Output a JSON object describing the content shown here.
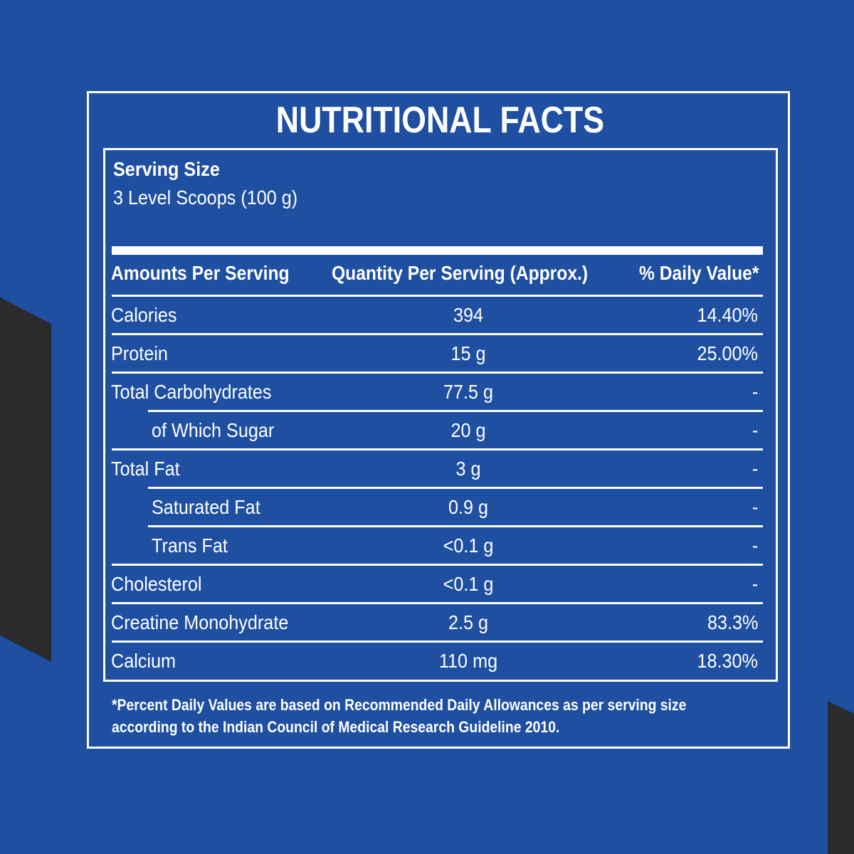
{
  "title": "NUTRITIONAL FACTS",
  "serving": {
    "label": "Serving Size",
    "value": "3 Level Scoops (100 g)"
  },
  "table": {
    "headers": {
      "name": "Amounts Per Serving",
      "quantity": "Quantity Per Serving (Approx.)",
      "daily_value": "% Daily Value*"
    },
    "rows": [
      {
        "name": "Calories",
        "quantity": "394",
        "daily_value": "14.40%",
        "indent": false
      },
      {
        "name": "Protein",
        "quantity": "15 g",
        "daily_value": "25.00%",
        "indent": false
      },
      {
        "name": "Total Carbohydrates",
        "quantity": "77.5 g",
        "daily_value": "-",
        "indent": false
      },
      {
        "name": "of Which Sugar",
        "quantity": "20 g",
        "daily_value": "-",
        "indent": true
      },
      {
        "name": "Total Fat",
        "quantity": "3 g",
        "daily_value": "-",
        "indent": false
      },
      {
        "name": "Saturated Fat",
        "quantity": "0.9 g",
        "daily_value": "-",
        "indent": true
      },
      {
        "name": "Trans Fat",
        "quantity": "<0.1 g",
        "daily_value": "-",
        "indent": true
      },
      {
        "name": "Cholesterol",
        "quantity": "<0.1 g",
        "daily_value": "-",
        "indent": false
      },
      {
        "name": "Creatine Monohydrate",
        "quantity": "2.5 g",
        "daily_value": "83.3%",
        "indent": false
      },
      {
        "name": "Calcium",
        "quantity": "110 mg",
        "daily_value": "18.30%",
        "indent": false
      }
    ]
  },
  "footnote": {
    "line1": "*Percent Daily Values are based on Recommended Daily Allowances as per serving size",
    "line2": "according to the Indian Council of Medical Research Guideline 2010."
  },
  "colors": {
    "background": "#1e4fa1",
    "accent_shape": "#2b2a2c",
    "text": "#ffffff"
  }
}
